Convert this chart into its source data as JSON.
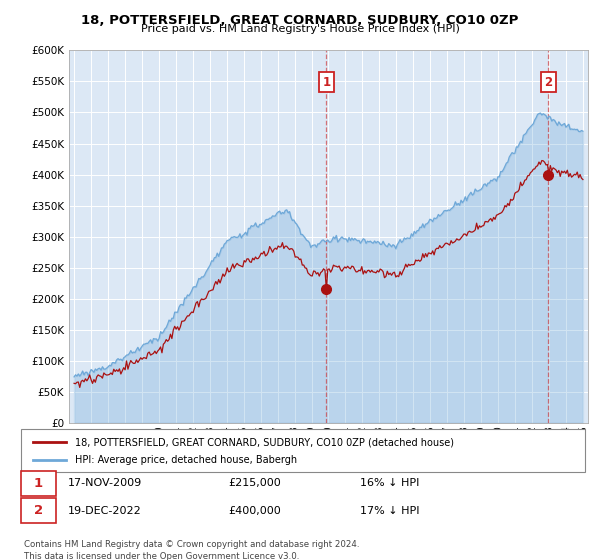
{
  "title": "18, POTTERSFIELD, GREAT CORNARD, SUDBURY, CO10 0ZP",
  "subtitle": "Price paid vs. HM Land Registry's House Price Index (HPI)",
  "legend_line1": "18, POTTERSFIELD, GREAT CORNARD, SUDBURY, CO10 0ZP (detached house)",
  "legend_line2": "HPI: Average price, detached house, Babergh",
  "sale1_date": "17-NOV-2009",
  "sale1_price": "£215,000",
  "sale1_note": "16% ↓ HPI",
  "sale2_date": "19-DEC-2022",
  "sale2_price": "£400,000",
  "sale2_note": "17% ↓ HPI",
  "footer": "Contains HM Land Registry data © Crown copyright and database right 2024.\nThis data is licensed under the Open Government Licence v3.0.",
  "hpi_color": "#6ea8d8",
  "price_color": "#aa1111",
  "vline_color": "#cc2222",
  "bg_color": "#ffffff",
  "plot_bg": "#dce8f5",
  "grid_color": "#ffffff",
  "ylim": [
    0,
    600000
  ],
  "yticks": [
    0,
    50000,
    100000,
    150000,
    200000,
    250000,
    300000,
    350000,
    400000,
    450000,
    500000,
    550000,
    600000
  ],
  "xlim_start": 1994.7,
  "xlim_end": 2025.3,
  "sale1_x": 2009.88,
  "sale1_y": 215000,
  "sale2_x": 2022.96,
  "sale2_y": 400000,
  "hpi_fill_alpha": 0.3
}
